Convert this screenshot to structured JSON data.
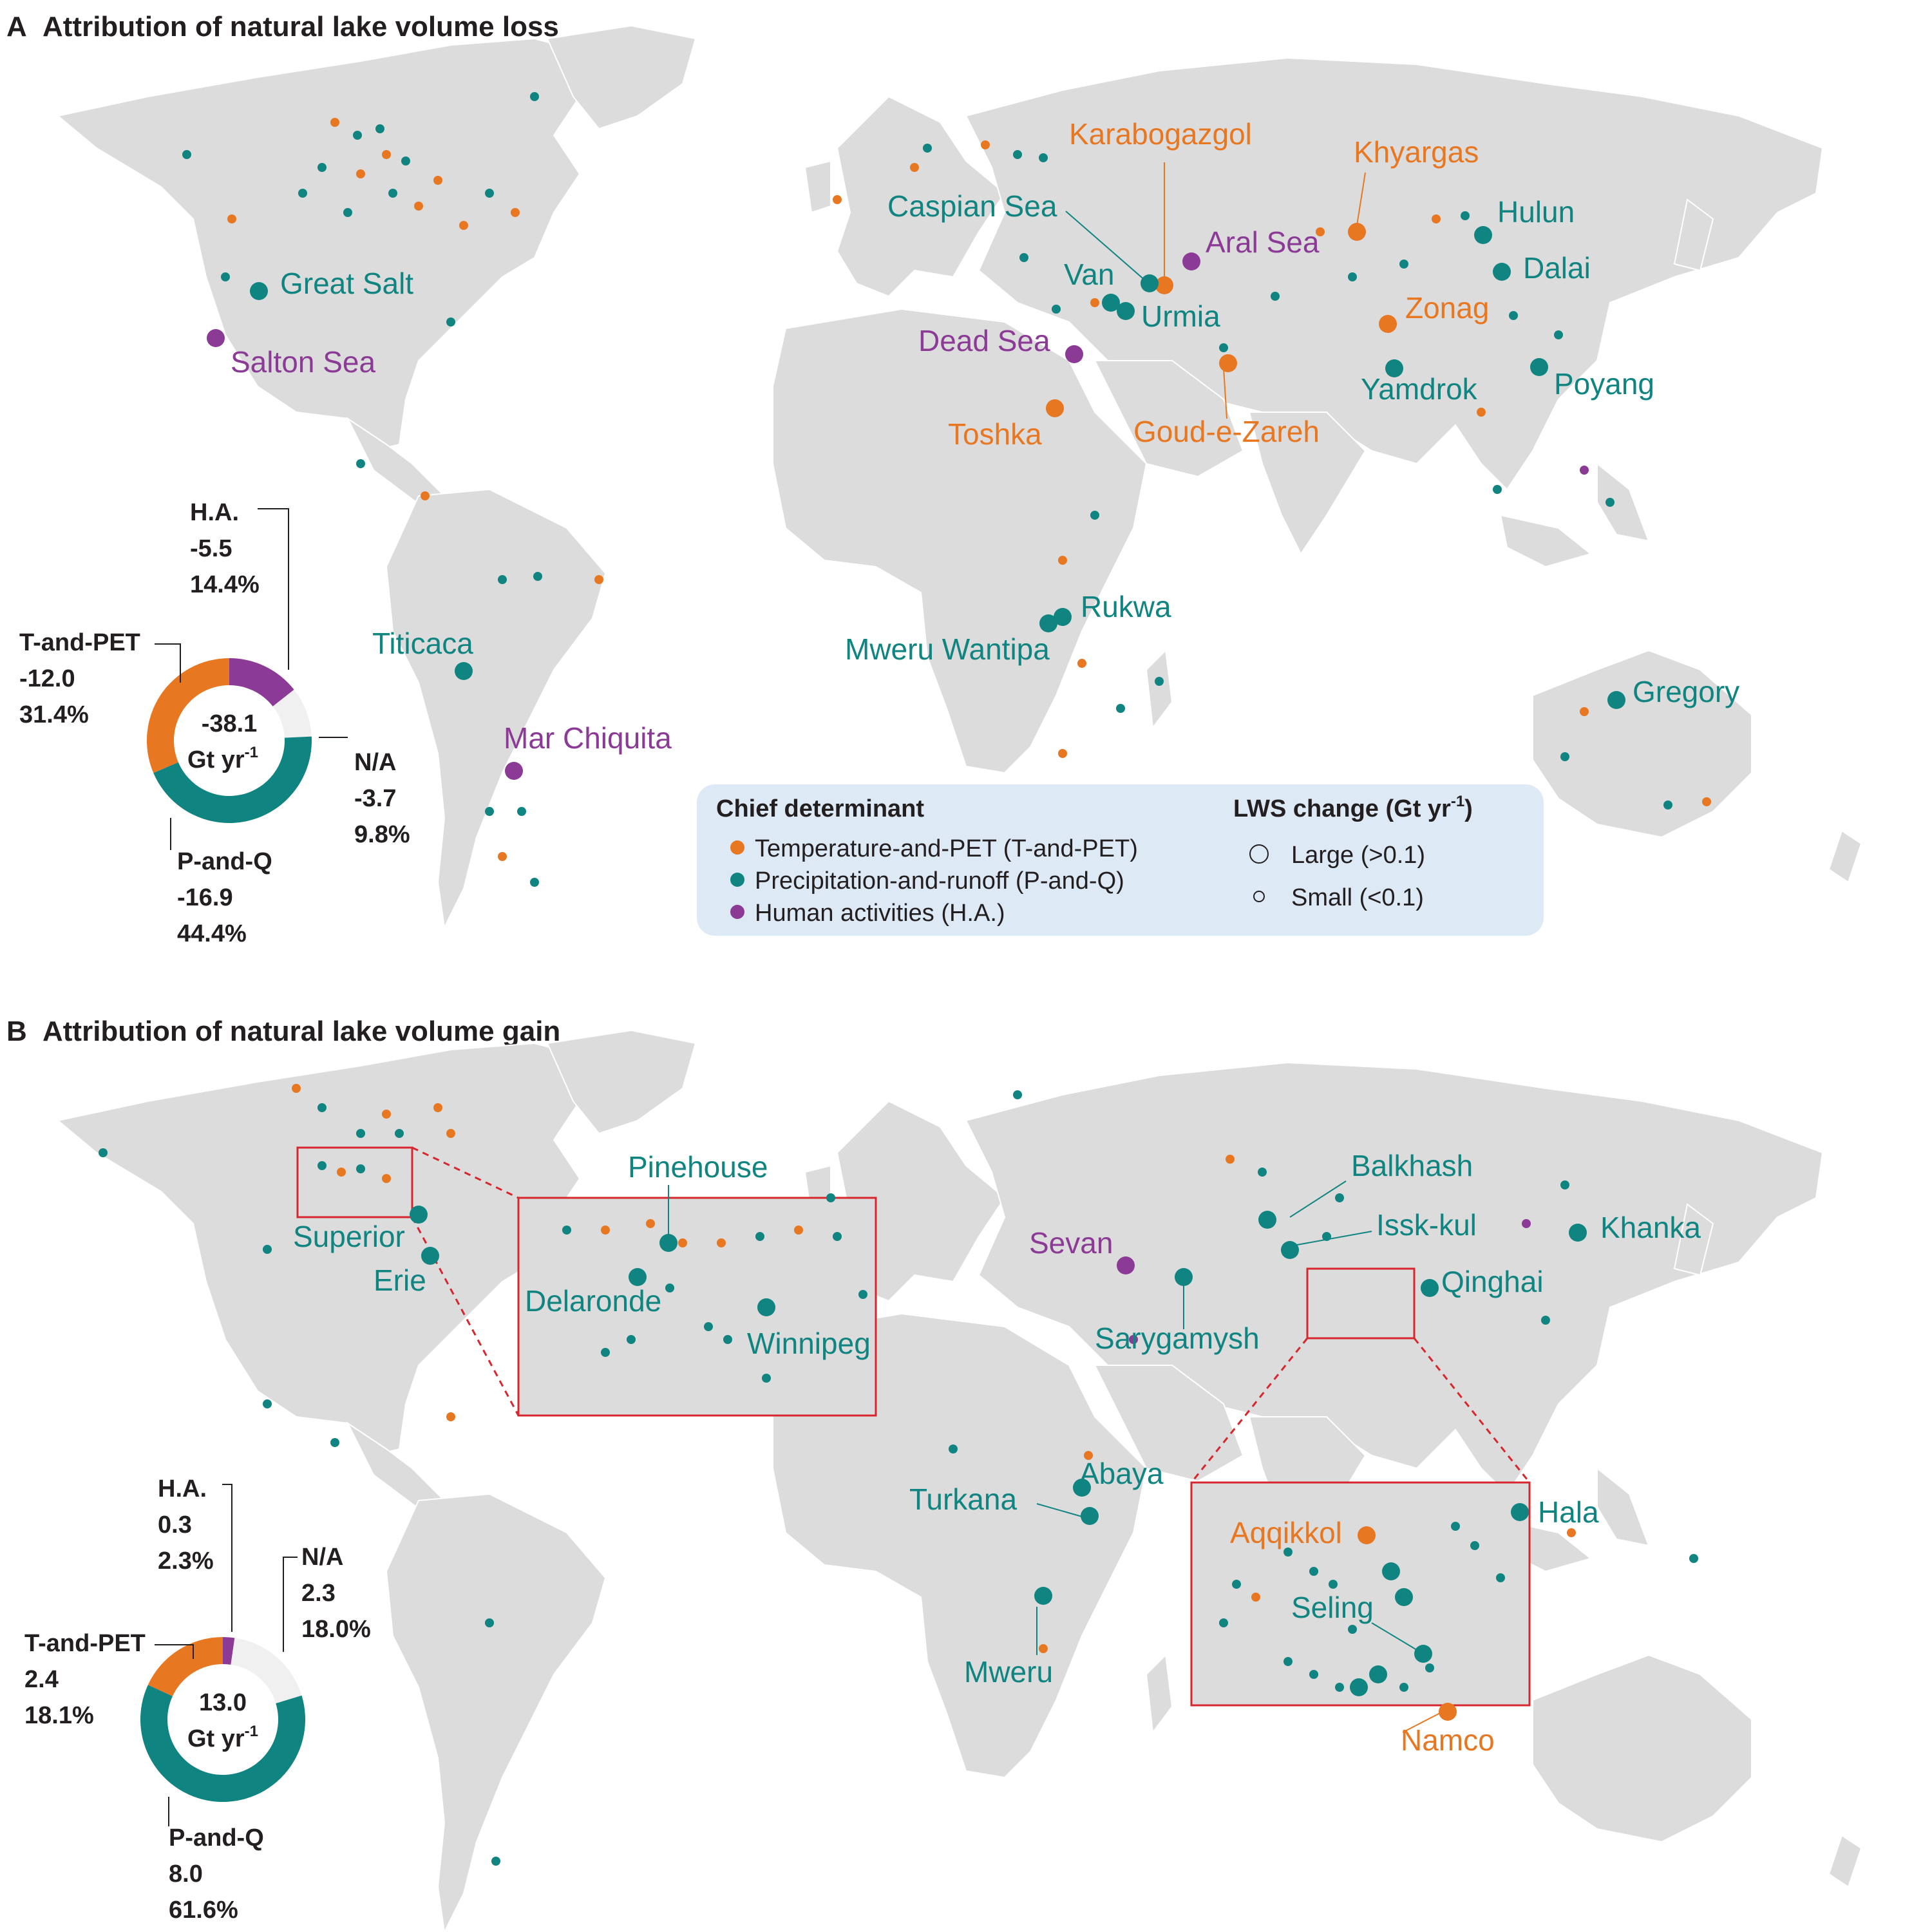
{
  "colors": {
    "t_and_pet": "#e87722",
    "p_and_q": "#0f8480",
    "human": "#8b3a96",
    "na": "#f0f0f0",
    "land": "#dcdcdc",
    "legend_bg": "#dde9f5",
    "inset_border": "#d7262e"
  },
  "panels": {
    "a": {
      "letter": "A",
      "title": "Attribution of natural lake volume loss"
    },
    "b": {
      "letter": "B",
      "title": "Attribution of natural lake volume gain"
    }
  },
  "legend": {
    "determinant_title": "Chief determinant",
    "determinant_items": [
      {
        "label": "Temperature-and-PET (T-and-PET)",
        "class": "T"
      },
      {
        "label": "Precipitation-and-runoff (P-and-Q)",
        "class": "P"
      },
      {
        "label": "Human activities (H.A.)",
        "class": "H"
      }
    ],
    "size_title": "LWS change (Gt yr",
    "size_title_sup": "-1",
    "size_title_end": ")",
    "size_items": [
      "Large (>0.1)",
      "Small (<0.1)"
    ]
  },
  "donut_a": {
    "center_value": "-38.1",
    "center_unit": "Gt yr",
    "center_sup": "-1",
    "segments": [
      {
        "name": "H.A.",
        "value": "-5.5",
        "pct": "14.4%",
        "frac": 0.144,
        "class": "H"
      },
      {
        "name": "N/A",
        "value": "-3.7",
        "pct": "9.8%",
        "frac": 0.098,
        "class": "N"
      },
      {
        "name": "P-and-Q",
        "value": "-16.9",
        "pct": "44.4%",
        "frac": 0.444,
        "class": "P"
      },
      {
        "name": "T-and-PET",
        "value": "-12.0",
        "pct": "31.4%",
        "frac": 0.314,
        "class": "T"
      }
    ]
  },
  "donut_b": {
    "center_value": "13.0",
    "center_unit": "Gt yr",
    "center_sup": "-1",
    "segments": [
      {
        "name": "H.A.",
        "value": "0.3",
        "pct": "2.3%",
        "frac": 0.023,
        "class": "H"
      },
      {
        "name": "N/A",
        "value": "2.3",
        "pct": "18.0%",
        "frac": 0.18,
        "class": "N"
      },
      {
        "name": "P-and-Q",
        "value": "8.0",
        "pct": "61.6%",
        "frac": 0.616,
        "class": "P"
      },
      {
        "name": "T-and-PET",
        "value": "2.4",
        "pct": "18.1%",
        "frac": 0.181,
        "class": "T"
      }
    ]
  },
  "labels_a": {
    "great_salt": "Great Salt",
    "salton_sea": "Salton Sea",
    "titicaca": "Titicaca",
    "mar_chiquita": "Mar Chiquita",
    "karabogazgol": "Karabogazgol",
    "caspian_sea": "Caspian Sea",
    "aral_sea": "Aral Sea",
    "van": "Van",
    "urmia": "Urmia",
    "dead_sea": "Dead Sea",
    "toshka": "Toshka",
    "goud_e_zareh": "Goud-e-Zareh",
    "khyargas": "Khyargas",
    "hulun": "Hulun",
    "dalai": "Dalai",
    "zonag": "Zonag",
    "yamdrok": "Yamdrok",
    "poyang": "Poyang",
    "rukwa": "Rukwa",
    "mweru_wantipa": "Mweru Wantipa",
    "gregory": "Gregory"
  },
  "labels_b": {
    "superior": "Superior",
    "erie": "Erie",
    "pinehouse": "Pinehouse",
    "delaronde": "Delaronde",
    "winnipeg": "Winnipeg",
    "sevan": "Sevan",
    "sarygamysh": "Sarygamysh",
    "balkhash": "Balkhash",
    "issk_kul": "Issk-kul",
    "khanka": "Khanka",
    "qinghai": "Qinghai",
    "abaya": "Abaya",
    "turkana": "Turkana",
    "mweru": "Mweru",
    "hala": "Hala",
    "aqqikkol": "Aqqikkol",
    "seling": "Seling",
    "namco": "Namco"
  }
}
